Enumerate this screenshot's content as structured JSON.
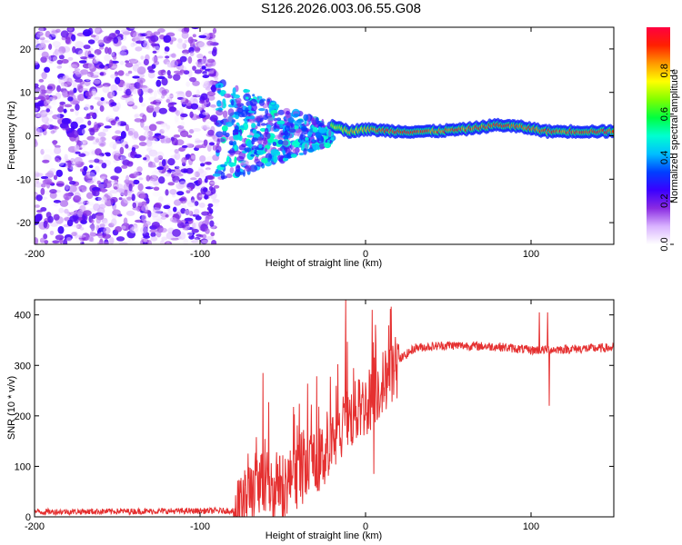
{
  "title": "S126.2026.003.06.55.G08",
  "chart_data": [
    {
      "type": "heatmap",
      "name": "spectrogram",
      "xlabel": "Height of straight line (km)",
      "ylabel": "Frequency (Hz)",
      "xlim": [
        -200,
        150
      ],
      "ylim": [
        -25,
        25
      ],
      "xticks": [
        -200,
        -100,
        0,
        100
      ],
      "yticks": [
        -20,
        -10,
        0,
        10,
        20
      ],
      "colorbar": {
        "label": "Normalized spectral amplitude",
        "range": [
          0,
          1
        ],
        "ticks": [
          "0.0",
          "0.2",
          "0.4",
          "0.6",
          "0.8"
        ],
        "colors": [
          "#ffffff",
          "#d9b3ff",
          "#8a2be2",
          "#3a00ff",
          "#0040ff",
          "#00bfff",
          "#00ffd0",
          "#00ff40",
          "#80ff00",
          "#ffff00",
          "#ff9900",
          "#ff2000",
          "#ff0040"
        ]
      },
      "ridge": [
        {
          "x": -20,
          "f": 2.5,
          "amp": 0.75
        },
        {
          "x": -10,
          "f": 1.0,
          "amp": 0.85
        },
        {
          "x": 0,
          "f": 1.5,
          "amp": 0.9
        },
        {
          "x": 20,
          "f": 1.0,
          "amp": 1.0
        },
        {
          "x": 40,
          "f": 1.0,
          "amp": 0.95
        },
        {
          "x": 60,
          "f": 1.5,
          "amp": 0.95
        },
        {
          "x": 80,
          "f": 2.5,
          "amp": 1.0
        },
        {
          "x": 95,
          "f": 2.0,
          "amp": 0.95
        },
        {
          "x": 110,
          "f": 1.0,
          "amp": 0.95
        },
        {
          "x": 150,
          "f": 1.0,
          "amp": 1.0
        }
      ],
      "noise_region": {
        "x_from": -200,
        "x_to": -90,
        "f_from": -25,
        "f_to": 25,
        "amp_max": 0.25
      },
      "transition_region": {
        "x_from": -90,
        "x_to": -20,
        "amp_max": 0.4
      }
    },
    {
      "type": "line",
      "name": "snr",
      "xlabel": "Height of straight line (km)",
      "ylabel": "SNR (10 * v/v)",
      "xlim": [
        -200,
        150
      ],
      "ylim": [
        0,
        430
      ],
      "xticks": [
        -200,
        -100,
        0,
        100
      ],
      "yticks": [
        0,
        100,
        200,
        300,
        400
      ],
      "color": "#e53030",
      "series_envelope": [
        {
          "x": -200,
          "y": 10
        },
        {
          "x": -80,
          "y": 12
        },
        {
          "x": -75,
          "y": 25
        },
        {
          "x": -65,
          "y": 80
        },
        {
          "x": -55,
          "y": 60
        },
        {
          "x": -40,
          "y": 90
        },
        {
          "x": -30,
          "y": 110
        },
        {
          "x": -20,
          "y": 150
        },
        {
          "x": -10,
          "y": 200
        },
        {
          "x": 0,
          "y": 230
        },
        {
          "x": 10,
          "y": 270
        },
        {
          "x": 20,
          "y": 310
        },
        {
          "x": 30,
          "y": 335
        },
        {
          "x": 50,
          "y": 340
        },
        {
          "x": 80,
          "y": 337
        },
        {
          "x": 100,
          "y": 330
        },
        {
          "x": 150,
          "y": 335
        }
      ],
      "spikes": [
        {
          "x": -62,
          "y": 285
        },
        {
          "x": -12,
          "y": 430
        },
        {
          "x": 4,
          "y": 410
        },
        {
          "x": 5,
          "y": 85
        },
        {
          "x": 105,
          "y": 405
        },
        {
          "x": 110,
          "y": 405
        },
        {
          "x": 111,
          "y": 220
        }
      ],
      "noise": [
        {
          "x_from": -200,
          "x_to": -80,
          "amp": 6
        },
        {
          "x_from": -80,
          "x_to": 20,
          "amp": 55
        },
        {
          "x_from": 20,
          "x_to": 150,
          "amp": 9
        }
      ]
    }
  ]
}
